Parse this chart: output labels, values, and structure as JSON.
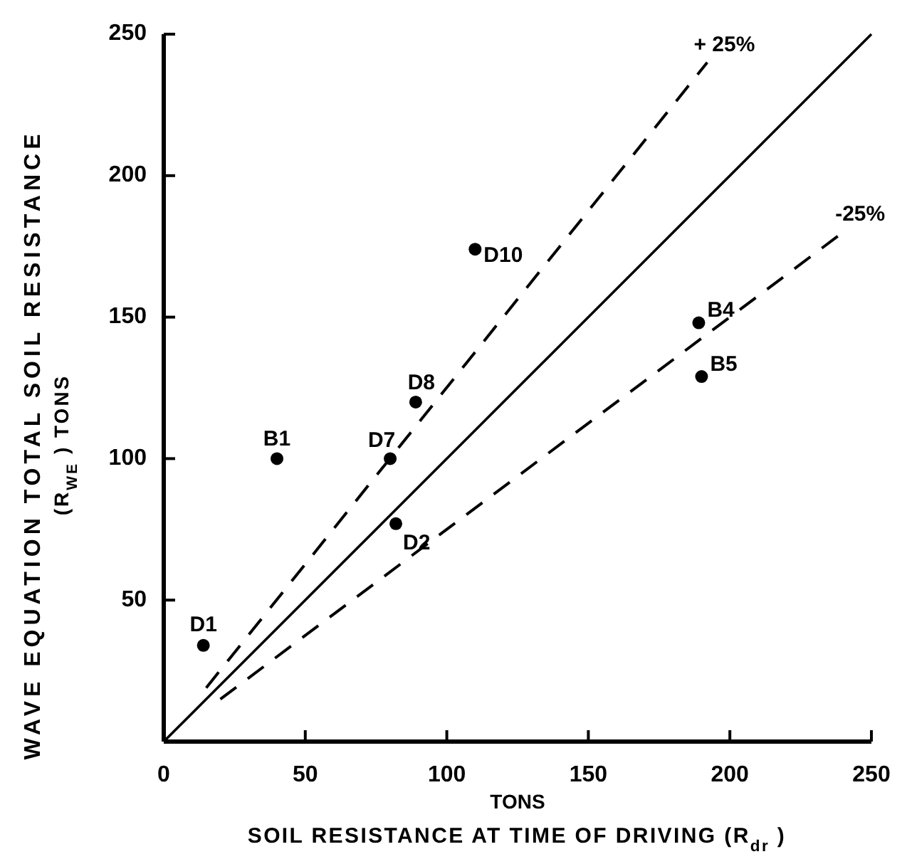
{
  "chart_data": {
    "type": "scatter",
    "xlabel": "TONS\nSOIL RESISTANCE AT TIME OF DRIVING (R$_{dr}$)",
    "ylabel": "WAVE EQUATION TOTAL SOIL RESISTANCE\n(R$_{WE}$) TONS",
    "xlim": [
      0,
      250
    ],
    "ylim": [
      0,
      250
    ],
    "xticks": [
      0,
      50,
      100,
      150,
      200,
      250
    ],
    "yticks": [
      {
        "value": 0,
        "label": null
      },
      50,
      100,
      150,
      200,
      250
    ],
    "grid": false,
    "marker": "circle",
    "series": [
      {
        "name": "D1",
        "color": "#000000",
        "x": [
          14
        ],
        "values": [
          34
        ]
      },
      {
        "name": "B1",
        "color": "#000000",
        "x": [
          40
        ],
        "values": [
          100
        ]
      },
      {
        "name": "D7",
        "color": "#000000",
        "x": [
          80
        ],
        "values": [
          100
        ]
      },
      {
        "name": "D2",
        "color": "#000000",
        "x": [
          82
        ],
        "values": [
          77
        ]
      },
      {
        "name": "D8",
        "color": "#000000",
        "x": [
          89
        ],
        "values": [
          120
        ]
      },
      {
        "name": "D10",
        "color": "#000000",
        "x": [
          110
        ],
        "values": [
          174
        ]
      },
      {
        "name": "B4",
        "color": "#000000",
        "x": [
          189
        ],
        "values": [
          148
        ]
      },
      {
        "name": "B5",
        "color": "#000000",
        "x": [
          190
        ],
        "values": [
          129
        ]
      },
      {
        "type": "line",
        "color": "#000000",
        "line_style": "solid",
        "marker": "none",
        "x": [
          0,
          250
        ],
        "values": [
          0,
          250
        ]
      },
      {
        "type": "line",
        "color": "#000000",
        "line_style": "dashed",
        "marker": "none",
        "x": [
          15,
          192
        ],
        "values": [
          19,
          240
        ]
      },
      {
        "type": "line",
        "color": "#000000",
        "line_style": "dashed",
        "marker": "none",
        "x": [
          20,
          240
        ],
        "values": [
          15,
          180
        ]
      }
    ],
    "annotations": [
      {
        "text": "+ 25%",
        "x": 192,
        "y": 240
      },
      {
        "text": "-25%",
        "x": 240,
        "y": 180
      }
    ]
  }
}
